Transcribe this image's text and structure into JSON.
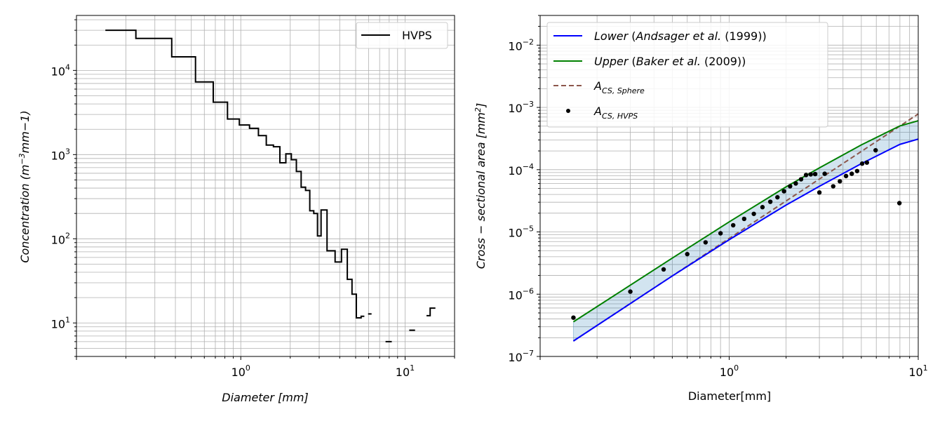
{
  "chart_data": [
    {
      "type": "line",
      "subtype": "step",
      "scale": {
        "x": "log",
        "y": "log"
      },
      "xlabel": "Diameter [mm]",
      "ylabel": "Concentration (m^-3mm-1)",
      "xlim": [
        0.1,
        20
      ],
      "ylim": [
        4,
        45000
      ],
      "x_ticks": [
        {
          "v": 1,
          "label": "10^0"
        },
        {
          "v": 10,
          "label": "10^1"
        }
      ],
      "y_ticks": [
        {
          "v": 10,
          "label": "10^1"
        },
        {
          "v": 100,
          "label": "10^2"
        },
        {
          "v": 1000,
          "label": "10^3"
        },
        {
          "v": 10000,
          "label": "10^4"
        }
      ],
      "grid": true,
      "legend": {
        "position": "top-right",
        "entries": [
          "HVPS"
        ]
      },
      "series": [
        {
          "name": "HVPS",
          "color": "#000000",
          "segments": [
            [
              [
                0.15,
                30000
              ],
              [
                0.23,
                30000
              ],
              [
                0.23,
                24000
              ],
              [
                0.38,
                24000
              ],
              [
                0.38,
                14500
              ],
              [
                0.53,
                14500
              ],
              [
                0.53,
                7300
              ],
              [
                0.68,
                7300
              ],
              [
                0.68,
                4200
              ],
              [
                0.83,
                4200
              ],
              [
                0.83,
                2650
              ],
              [
                0.98,
                2650
              ],
              [
                0.98,
                2250
              ],
              [
                1.13,
                2250
              ],
              [
                1.13,
                2050
              ],
              [
                1.28,
                2050
              ],
              [
                1.28,
                1680
              ],
              [
                1.43,
                1680
              ],
              [
                1.43,
                1300
              ],
              [
                1.58,
                1300
              ],
              [
                1.58,
                1240
              ],
              [
                1.73,
                1240
              ],
              [
                1.73,
                800
              ],
              [
                1.88,
                800
              ],
              [
                1.88,
                1020
              ],
              [
                2.03,
                1020
              ],
              [
                2.03,
                870
              ],
              [
                2.18,
                870
              ],
              [
                2.18,
                630
              ],
              [
                2.33,
                630
              ],
              [
                2.33,
                410
              ],
              [
                2.48,
                410
              ],
              [
                2.48,
                375
              ],
              [
                2.63,
                375
              ],
              [
                2.63,
                215
              ],
              [
                2.78,
                215
              ],
              [
                2.78,
                200
              ],
              [
                2.93,
                200
              ],
              [
                2.93,
                108
              ],
              [
                3.08,
                108
              ],
              [
                3.08,
                220
              ],
              [
                3.35,
                220
              ],
              [
                3.35,
                72
              ],
              [
                3.75,
                72
              ],
              [
                3.75,
                53
              ],
              [
                4.1,
                53
              ],
              [
                4.1,
                75
              ],
              [
                4.45,
                75
              ],
              [
                4.45,
                33
              ],
              [
                4.75,
                33
              ],
              [
                4.75,
                22
              ],
              [
                5.05,
                22
              ],
              [
                5.05,
                11.5
              ],
              [
                5.4,
                11.5
              ],
              [
                5.4,
                12
              ],
              [
                5.65,
                12
              ]
            ],
            [
              [
                5.95,
                12.8
              ],
              [
                6.25,
                12.8
              ]
            ],
            [
              [
                7.6,
                6
              ],
              [
                8.3,
                6
              ]
            ],
            [
              [
                10.6,
                8.2
              ],
              [
                11.5,
                8.2
              ]
            ],
            [
              [
                13.5,
                12.2
              ],
              [
                14.2,
                12.2
              ],
              [
                14.2,
                15
              ],
              [
                15.3,
                15
              ]
            ]
          ]
        }
      ]
    },
    {
      "type": "line",
      "scale": {
        "x": "log",
        "y": "log"
      },
      "xlabel": "Diameter[mm]",
      "ylabel": "Cross − sectional area [mm^2]",
      "xlim": [
        0.1,
        10
      ],
      "ylim": [
        1e-07,
        0.03
      ],
      "x_ticks": [
        {
          "v": 1,
          "label": "10^0"
        },
        {
          "v": 10,
          "label": "10^1"
        }
      ],
      "y_ticks": [
        {
          "v": 1e-07,
          "label": "10^-7"
        },
        {
          "v": 1e-06,
          "label": "10^-6"
        },
        {
          "v": 1e-05,
          "label": "10^-5"
        },
        {
          "v": 0.0001,
          "label": "10^-4"
        },
        {
          "v": 0.001,
          "label": "10^-3"
        },
        {
          "v": 0.01,
          "label": "10^-2"
        }
      ],
      "grid": true,
      "legend": {
        "position": "top-left",
        "entries": [
          {
            "name": "Lower",
            "cite": "Andsager et al.",
            "year": "(1999))",
            "style": "solid",
            "color": "#0000ff"
          },
          {
            "name": "Upper",
            "cite": "Baker et al.",
            "year": "(2009))",
            "style": "solid",
            "color": "#008000"
          },
          {
            "name": "A",
            "sub": "CS, Sphere",
            "style": "dashed",
            "color": "#8c564b"
          },
          {
            "name": "A",
            "sub": "CS, HVPS",
            "style": "marker",
            "color": "#000000"
          }
        ]
      },
      "fill_between": {
        "lower": "Lower",
        "upper": "Upper",
        "color": "#1f77b4",
        "alpha": 0.2
      },
      "series": [
        {
          "name": "Lower",
          "x": [
            0.15,
            0.5,
            1,
            2,
            3,
            5,
            8,
            10
          ],
          "y": [
            1.77e-07,
            1.96e-06,
            7.5e-06,
            2.7e-05,
            5.4e-05,
            0.000125,
            0.000255,
            0.00031
          ]
        },
        {
          "name": "Upper",
          "x": [
            0.15,
            0.5,
            1,
            2,
            3,
            5,
            8,
            10
          ],
          "y": [
            3.6e-07,
            3.8e-06,
            1.45e-05,
            5.3e-05,
            0.000107,
            0.00025,
            0.000505,
            0.00061
          ]
        },
        {
          "name": "A_CS,Sphere",
          "x": [
            0.15,
            10
          ],
          "y": [
            1.77e-07,
            0.000785
          ]
        },
        {
          "name": "A_CS,HVPS",
          "x": [
            0.15,
            0.3,
            0.45,
            0.6,
            0.75,
            0.9,
            1.05,
            1.2,
            1.35,
            1.5,
            1.65,
            1.8,
            1.95,
            2.1,
            2.25,
            2.4,
            2.55,
            2.7,
            2.85,
            3.0,
            3.2,
            3.55,
            3.85,
            4.15,
            4.45,
            4.75,
            5.05,
            5.35,
            5.95,
            7.95
          ],
          "y": [
            4.2e-07,
            1.1e-06,
            2.5e-06,
            4.4e-06,
            6.8e-06,
            9.5e-06,
            1.28e-05,
            1.62e-05,
            1.95e-05,
            2.5e-05,
            3.05e-05,
            3.6e-05,
            4.5e-05,
            5.4e-05,
            6e-05,
            7e-05,
            8.2e-05,
            8.4e-05,
            8.5e-05,
            4.3e-05,
            8.6e-05,
            5.4e-05,
            6.5e-05,
            7.9e-05,
            8.6e-05,
            9.5e-05,
            0.000125,
            0.00013,
            0.000205,
            2.9e-05
          ]
        }
      ]
    }
  ]
}
